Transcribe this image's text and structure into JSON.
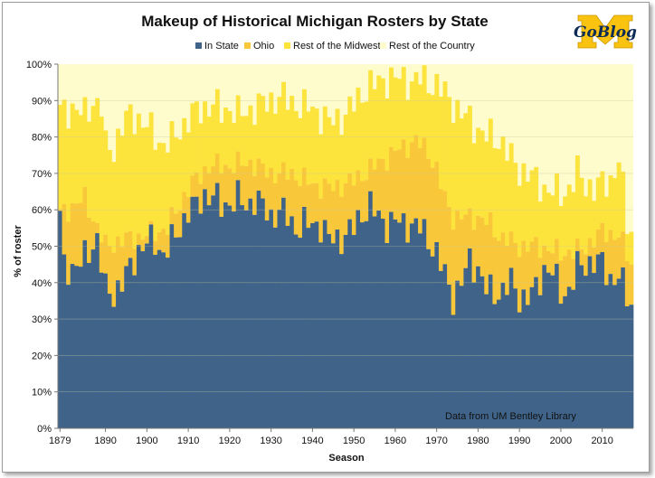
{
  "chart_data": {
    "type": "bar",
    "stacked": true,
    "title": "Makeup of Historical Michigan Rosters by State",
    "xlabel": "Season",
    "ylabel": "% of roster",
    "xlim": [
      1879,
      2017
    ],
    "ylim": [
      0,
      100
    ],
    "x_ticks": [
      "1879",
      "1890",
      "1900",
      "1910",
      "1920",
      "1930",
      "1940",
      "1950",
      "1960",
      "1970",
      "1980",
      "1990",
      "2000",
      "2010"
    ],
    "y_ticks": [
      "0%",
      "10%",
      "20%",
      "30%",
      "40%",
      "50%",
      "60%",
      "70%",
      "80%",
      "90%",
      "100%"
    ],
    "grid": "horizontal",
    "legend_position": "top-center",
    "colors": {
      "in_state": "#3f6389",
      "ohio": "#f9c73a",
      "midwest": "#fde43c",
      "country": "#fefbcd",
      "gridline": "#c8c8a0"
    },
    "series": [
      {
        "name": "In State",
        "anchors": [
          [
            1879,
            58
          ],
          [
            1880,
            45
          ],
          [
            1882,
            44
          ],
          [
            1884,
            45
          ],
          [
            1886,
            49
          ],
          [
            1888,
            52
          ],
          [
            1890,
            38
          ],
          [
            1892,
            37
          ],
          [
            1894,
            40
          ],
          [
            1896,
            44
          ],
          [
            1898,
            49
          ],
          [
            1900,
            51
          ],
          [
            1902,
            51
          ],
          [
            1904,
            48
          ],
          [
            1906,
            51
          ],
          [
            1908,
            55
          ],
          [
            1910,
            60
          ],
          [
            1912,
            61
          ],
          [
            1914,
            64
          ],
          [
            1916,
            64
          ],
          [
            1918,
            61
          ],
          [
            1920,
            62
          ],
          [
            1922,
            63
          ],
          [
            1924,
            61
          ],
          [
            1926,
            63
          ],
          [
            1928,
            61
          ],
          [
            1930,
            58
          ],
          [
            1932,
            60
          ],
          [
            1934,
            58
          ],
          [
            1936,
            55
          ],
          [
            1938,
            56
          ],
          [
            1940,
            56
          ],
          [
            1942,
            56
          ],
          [
            1944,
            52
          ],
          [
            1946,
            52
          ],
          [
            1948,
            53
          ],
          [
            1950,
            55
          ],
          [
            1952,
            59
          ],
          [
            1954,
            61
          ],
          [
            1956,
            58
          ],
          [
            1958,
            56
          ],
          [
            1960,
            57
          ],
          [
            1962,
            56
          ],
          [
            1964,
            56
          ],
          [
            1966,
            55
          ],
          [
            1968,
            52
          ],
          [
            1970,
            48
          ],
          [
            1972,
            42
          ],
          [
            1974,
            36
          ],
          [
            1976,
            40
          ],
          [
            1978,
            46
          ],
          [
            1980,
            44
          ],
          [
            1982,
            38
          ],
          [
            1984,
            37
          ],
          [
            1986,
            38
          ],
          [
            1988,
            40
          ],
          [
            1990,
            36
          ],
          [
            1992,
            36
          ],
          [
            1994,
            38
          ],
          [
            1996,
            44
          ],
          [
            1998,
            43
          ],
          [
            2000,
            37
          ],
          [
            2002,
            38
          ],
          [
            2004,
            44
          ],
          [
            2006,
            45
          ],
          [
            2008,
            46
          ],
          [
            2010,
            45
          ],
          [
            2012,
            41
          ],
          [
            2014,
            42
          ],
          [
            2016,
            36
          ],
          [
            2017,
            34
          ]
        ]
      },
      {
        "name": "Ohio",
        "anchors": [
          [
            1879,
            59
          ],
          [
            1885,
            63
          ],
          [
            1890,
            50
          ],
          [
            1895,
            52
          ],
          [
            1900,
            53
          ],
          [
            1905,
            55
          ],
          [
            1910,
            66
          ],
          [
            1915,
            72
          ],
          [
            1920,
            72
          ],
          [
            1925,
            73
          ],
          [
            1930,
            70
          ],
          [
            1935,
            70
          ],
          [
            1940,
            67
          ],
          [
            1945,
            66
          ],
          [
            1950,
            68
          ],
          [
            1955,
            72
          ],
          [
            1960,
            76
          ],
          [
            1965,
            79
          ],
          [
            1968,
            76
          ],
          [
            1970,
            71
          ],
          [
            1972,
            63
          ],
          [
            1974,
            58
          ],
          [
            1976,
            58
          ],
          [
            1978,
            58
          ],
          [
            1980,
            58
          ],
          [
            1983,
            56
          ],
          [
            1985,
            53
          ],
          [
            1990,
            50
          ],
          [
            1995,
            50
          ],
          [
            2000,
            48
          ],
          [
            2005,
            49
          ],
          [
            2010,
            54
          ],
          [
            2014,
            53
          ],
          [
            2017,
            45
          ]
        ]
      },
      {
        "name": "Rest of the Midwest",
        "anchors": [
          [
            1879,
            87
          ],
          [
            1882,
            88
          ],
          [
            1885,
            86
          ],
          [
            1887,
            90
          ],
          [
            1889,
            88
          ],
          [
            1890,
            77
          ],
          [
            1892,
            77
          ],
          [
            1894,
            83
          ],
          [
            1896,
            86
          ],
          [
            1898,
            85
          ],
          [
            1900,
            83
          ],
          [
            1902,
            80
          ],
          [
            1904,
            78
          ],
          [
            1906,
            79
          ],
          [
            1908,
            82
          ],
          [
            1910,
            85
          ],
          [
            1912,
            87
          ],
          [
            1914,
            88
          ],
          [
            1916,
            89
          ],
          [
            1918,
            87
          ],
          [
            1920,
            88
          ],
          [
            1922,
            86
          ],
          [
            1924,
            87
          ],
          [
            1926,
            88
          ],
          [
            1928,
            89
          ],
          [
            1930,
            90
          ],
          [
            1932,
            91
          ],
          [
            1934,
            90
          ],
          [
            1936,
            89
          ],
          [
            1938,
            88
          ],
          [
            1940,
            88
          ],
          [
            1942,
            86
          ],
          [
            1944,
            84
          ],
          [
            1946,
            85
          ],
          [
            1948,
            86
          ],
          [
            1950,
            89
          ],
          [
            1952,
            92
          ],
          [
            1954,
            94
          ],
          [
            1956,
            95
          ],
          [
            1958,
            96
          ],
          [
            1960,
            96
          ],
          [
            1962,
            96
          ],
          [
            1964,
            95
          ],
          [
            1966,
            96
          ],
          [
            1968,
            95
          ],
          [
            1970,
            94
          ],
          [
            1972,
            92
          ],
          [
            1974,
            89
          ],
          [
            1976,
            86
          ],
          [
            1978,
            85
          ],
          [
            1980,
            82
          ],
          [
            1982,
            80
          ],
          [
            1984,
            80
          ],
          [
            1986,
            78
          ],
          [
            1988,
            74
          ],
          [
            1990,
            71
          ],
          [
            1992,
            70
          ],
          [
            1994,
            68
          ],
          [
            1996,
            66
          ],
          [
            1998,
            65
          ],
          [
            2000,
            64
          ],
          [
            2002,
            66
          ],
          [
            2004,
            70
          ],
          [
            2006,
            67
          ],
          [
            2008,
            66
          ],
          [
            2010,
            67
          ],
          [
            2012,
            68
          ],
          [
            2014,
            74
          ],
          [
            2016,
            56
          ],
          [
            2017,
            54
          ]
        ]
      },
      {
        "name": "Rest of the Country",
        "anchors": [
          [
            1879,
            100
          ],
          [
            2017,
            100
          ]
        ]
      }
    ],
    "annotations": [
      "Data from UM Bentley Library"
    ]
  },
  "branding": {
    "logo_text": "GoBlog"
  }
}
